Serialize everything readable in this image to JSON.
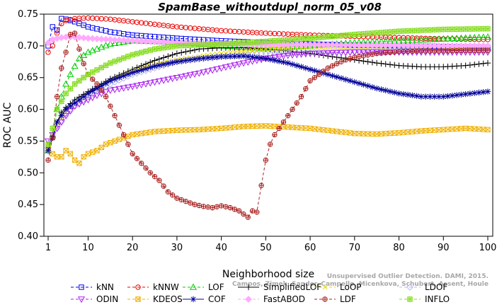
{
  "chart_data": {
    "type": "line",
    "title": "SpamBase_withoutdupl_norm_05_v08",
    "xlabel": "Neighborhood size",
    "ylabel": "ROC AUC",
    "xlim": [
      1,
      100
    ],
    "ylim": [
      0.4,
      0.75
    ],
    "xticks": [
      1,
      10,
      20,
      30,
      40,
      50,
      60,
      70,
      80,
      90,
      100
    ],
    "yticks": [
      0.4,
      0.45,
      0.5,
      0.55,
      0.6,
      0.65,
      0.7,
      0.75
    ],
    "grid": false,
    "legend_position": "bottom",
    "watermark": "Campos, Zimek, Sander, Campello, Micenkova, Schubert, Assent, Houle",
    "watermark_top": "Unsupervised Outlier Detection. DAMI, 2015.",
    "series": [
      {
        "name": "kNN",
        "color": "#0000ee",
        "marker": "square",
        "dash": "4,3",
        "points": [
          [
            1,
            0.7
          ],
          [
            2,
            0.73
          ],
          [
            3,
            0.725
          ],
          [
            4,
            0.743
          ],
          [
            5,
            0.742
          ],
          [
            7,
            0.738
          ],
          [
            10,
            0.73
          ],
          [
            15,
            0.722
          ],
          [
            20,
            0.717
          ],
          [
            30,
            0.712
          ],
          [
            40,
            0.708
          ],
          [
            50,
            0.705
          ],
          [
            60,
            0.703
          ],
          [
            70,
            0.701
          ],
          [
            80,
            0.7
          ],
          [
            90,
            0.699
          ],
          [
            100,
            0.698
          ]
        ]
      },
      {
        "name": "kNNW",
        "color": "#ee0000",
        "marker": "circle",
        "dash": "4,3",
        "points": [
          [
            1,
            0.69
          ],
          [
            2,
            0.7
          ],
          [
            3,
            0.72
          ],
          [
            4,
            0.735
          ],
          [
            5,
            0.74
          ],
          [
            7,
            0.743
          ],
          [
            10,
            0.744
          ],
          [
            15,
            0.742
          ],
          [
            20,
            0.738
          ],
          [
            30,
            0.73
          ],
          [
            40,
            0.724
          ],
          [
            50,
            0.72
          ],
          [
            60,
            0.717
          ],
          [
            70,
            0.715
          ],
          [
            80,
            0.713
          ],
          [
            90,
            0.711
          ],
          [
            100,
            0.71
          ]
        ]
      },
      {
        "name": "LOF",
        "color": "#00cc00",
        "marker": "triangle-up",
        "dash": "4,3",
        "points": [
          [
            1,
            0.535
          ],
          [
            2,
            0.56
          ],
          [
            3,
            0.6
          ],
          [
            4,
            0.62
          ],
          [
            5,
            0.64
          ],
          [
            6,
            0.655
          ],
          [
            7,
            0.668
          ],
          [
            8,
            0.68
          ],
          [
            10,
            0.69
          ],
          [
            15,
            0.703
          ],
          [
            20,
            0.708
          ],
          [
            30,
            0.706
          ],
          [
            40,
            0.7
          ],
          [
            50,
            0.696
          ],
          [
            60,
            0.7
          ],
          [
            70,
            0.705
          ],
          [
            80,
            0.708
          ],
          [
            90,
            0.711
          ],
          [
            100,
            0.714
          ]
        ]
      },
      {
        "name": "SimplifiedLOF",
        "color": "#000000",
        "marker": "plus",
        "dash": "",
        "points": [
          [
            1,
            0.54
          ],
          [
            2,
            0.555
          ],
          [
            3,
            0.58
          ],
          [
            4,
            0.595
          ],
          [
            5,
            0.603
          ],
          [
            7,
            0.615
          ],
          [
            10,
            0.628
          ],
          [
            15,
            0.648
          ],
          [
            20,
            0.663
          ],
          [
            25,
            0.677
          ],
          [
            30,
            0.688
          ],
          [
            35,
            0.695
          ],
          [
            40,
            0.697
          ],
          [
            45,
            0.697
          ],
          [
            50,
            0.695
          ],
          [
            55,
            0.692
          ],
          [
            60,
            0.688
          ],
          [
            65,
            0.683
          ],
          [
            70,
            0.678
          ],
          [
            75,
            0.673
          ],
          [
            80,
            0.669
          ],
          [
            85,
            0.667
          ],
          [
            90,
            0.667
          ],
          [
            95,
            0.669
          ],
          [
            100,
            0.673
          ]
        ]
      },
      {
        "name": "LoOP",
        "color": "#e8d800",
        "marker": "cross",
        "dash": "4,3",
        "points": [
          [
            1,
            0.54
          ],
          [
            2,
            0.555
          ],
          [
            3,
            0.575
          ],
          [
            5,
            0.595
          ],
          [
            7,
            0.61
          ],
          [
            10,
            0.625
          ],
          [
            15,
            0.645
          ],
          [
            20,
            0.66
          ],
          [
            25,
            0.67
          ],
          [
            30,
            0.678
          ],
          [
            40,
            0.688
          ],
          [
            50,
            0.695
          ],
          [
            60,
            0.698
          ],
          [
            70,
            0.698
          ],
          [
            80,
            0.697
          ],
          [
            90,
            0.696
          ],
          [
            100,
            0.696
          ]
        ]
      },
      {
        "name": "LDOF",
        "color": "#b8b8ee",
        "marker": "diamond",
        "dash": "4,3",
        "points": [
          [
            1,
            0.54
          ],
          [
            2,
            0.555
          ],
          [
            3,
            0.57
          ],
          [
            5,
            0.59
          ],
          [
            7,
            0.605
          ],
          [
            10,
            0.62
          ],
          [
            15,
            0.64
          ],
          [
            20,
            0.655
          ],
          [
            25,
            0.665
          ],
          [
            30,
            0.675
          ],
          [
            40,
            0.683
          ],
          [
            50,
            0.688
          ],
          [
            60,
            0.69
          ],
          [
            70,
            0.691
          ],
          [
            80,
            0.692
          ],
          [
            90,
            0.692
          ],
          [
            100,
            0.692
          ]
        ]
      },
      {
        "name": "ODIN",
        "color": "#aa22ee",
        "marker": "triangle-down",
        "dash": "4,3",
        "points": [
          [
            1,
            0.55
          ],
          [
            2,
            0.56
          ],
          [
            3,
            0.57
          ],
          [
            4,
            0.58
          ],
          [
            5,
            0.59
          ],
          [
            7,
            0.605
          ],
          [
            10,
            0.615
          ],
          [
            12,
            0.622
          ],
          [
            15,
            0.63
          ],
          [
            20,
            0.636
          ],
          [
            25,
            0.643
          ],
          [
            30,
            0.65
          ],
          [
            35,
            0.657
          ],
          [
            40,
            0.665
          ],
          [
            45,
            0.673
          ],
          [
            50,
            0.68
          ],
          [
            55,
            0.685
          ],
          [
            60,
            0.688
          ],
          [
            70,
            0.69
          ],
          [
            80,
            0.69
          ],
          [
            90,
            0.69
          ],
          [
            100,
            0.69
          ]
        ]
      },
      {
        "name": "KDEOS",
        "color": "#f0b000",
        "marker": "square-x",
        "dash": "4,3",
        "points": [
          [
            1,
            0.54
          ],
          [
            2,
            0.53
          ],
          [
            3,
            0.525
          ],
          [
            4,
            0.525
          ],
          [
            5,
            0.535
          ],
          [
            6,
            0.53
          ],
          [
            7,
            0.52
          ],
          [
            8,
            0.515
          ],
          [
            9,
            0.525
          ],
          [
            10,
            0.53
          ],
          [
            12,
            0.535
          ],
          [
            14,
            0.545
          ],
          [
            16,
            0.55
          ],
          [
            18,
            0.555
          ],
          [
            20,
            0.56
          ],
          [
            25,
            0.565
          ],
          [
            30,
            0.567
          ],
          [
            35,
            0.568
          ],
          [
            40,
            0.57
          ],
          [
            45,
            0.573
          ],
          [
            50,
            0.574
          ],
          [
            55,
            0.572
          ],
          [
            60,
            0.57
          ],
          [
            65,
            0.566
          ],
          [
            70,
            0.562
          ],
          [
            75,
            0.561
          ],
          [
            80,
            0.563
          ],
          [
            85,
            0.566
          ],
          [
            90,
            0.568
          ],
          [
            95,
            0.57
          ],
          [
            100,
            0.568
          ]
        ]
      },
      {
        "name": "COF",
        "color": "#000099",
        "marker": "asterisk",
        "dash": "",
        "points": [
          [
            1,
            0.535
          ],
          [
            2,
            0.555
          ],
          [
            3,
            0.58
          ],
          [
            5,
            0.6
          ],
          [
            7,
            0.61
          ],
          [
            10,
            0.625
          ],
          [
            15,
            0.645
          ],
          [
            20,
            0.658
          ],
          [
            25,
            0.668
          ],
          [
            30,
            0.675
          ],
          [
            35,
            0.68
          ],
          [
            40,
            0.683
          ],
          [
            45,
            0.684
          ],
          [
            50,
            0.68
          ],
          [
            55,
            0.673
          ],
          [
            60,
            0.663
          ],
          [
            65,
            0.653
          ],
          [
            70,
            0.643
          ],
          [
            75,
            0.633
          ],
          [
            80,
            0.625
          ],
          [
            85,
            0.62
          ],
          [
            90,
            0.62
          ],
          [
            95,
            0.624
          ],
          [
            100,
            0.628
          ]
        ]
      },
      {
        "name": "FastABOD",
        "color": "#ffaaff",
        "marker": "diamond-filled",
        "dash": "4,3",
        "points": [
          [
            1,
            0.705
          ],
          [
            2,
            0.71
          ],
          [
            3,
            0.712
          ],
          [
            4,
            0.713
          ],
          [
            5,
            0.714
          ],
          [
            7,
            0.714
          ],
          [
            10,
            0.712
          ],
          [
            15,
            0.71
          ],
          [
            20,
            0.708
          ],
          [
            30,
            0.705
          ],
          [
            40,
            0.703
          ],
          [
            50,
            0.702
          ],
          [
            60,
            0.702
          ],
          [
            70,
            0.701
          ],
          [
            80,
            0.701
          ],
          [
            90,
            0.7
          ],
          [
            100,
            0.7
          ]
        ]
      },
      {
        "name": "LDF",
        "color": "#aa2222",
        "marker": "circle-plus",
        "dash": "4,3",
        "points": [
          [
            1,
            0.52
          ],
          [
            2,
            0.555
          ],
          [
            3,
            0.62
          ],
          [
            4,
            0.665
          ],
          [
            5,
            0.69
          ],
          [
            6,
            0.718
          ],
          [
            7,
            0.72
          ],
          [
            8,
            0.695
          ],
          [
            9,
            0.672
          ],
          [
            10,
            0.655
          ],
          [
            12,
            0.64
          ],
          [
            14,
            0.62
          ],
          [
            16,
            0.59
          ],
          [
            18,
            0.56
          ],
          [
            20,
            0.53
          ],
          [
            22,
            0.515
          ],
          [
            24,
            0.5
          ],
          [
            26,
            0.488
          ],
          [
            28,
            0.47
          ],
          [
            30,
            0.46
          ],
          [
            32,
            0.455
          ],
          [
            34,
            0.45
          ],
          [
            36,
            0.447
          ],
          [
            38,
            0.445
          ],
          [
            40,
            0.448
          ],
          [
            42,
            0.445
          ],
          [
            44,
            0.44
          ],
          [
            46,
            0.43
          ],
          [
            47,
            0.44
          ],
          [
            48,
            0.438
          ],
          [
            49,
            0.48
          ],
          [
            50,
            0.52
          ],
          [
            51,
            0.545
          ],
          [
            52,
            0.56
          ],
          [
            54,
            0.58
          ],
          [
            56,
            0.6
          ],
          [
            58,
            0.62
          ],
          [
            60,
            0.645
          ],
          [
            62,
            0.655
          ],
          [
            64,
            0.665
          ],
          [
            66,
            0.672
          ],
          [
            68,
            0.678
          ],
          [
            70,
            0.682
          ],
          [
            75,
            0.688
          ],
          [
            80,
            0.691
          ],
          [
            85,
            0.692
          ],
          [
            90,
            0.692
          ],
          [
            95,
            0.693
          ],
          [
            100,
            0.693
          ]
        ]
      },
      {
        "name": "INFLO",
        "color": "#88dd22",
        "marker": "star",
        "dash": "4,3",
        "points": [
          [
            1,
            0.545
          ],
          [
            2,
            0.57
          ],
          [
            3,
            0.6
          ],
          [
            5,
            0.625
          ],
          [
            7,
            0.64
          ],
          [
            10,
            0.655
          ],
          [
            15,
            0.673
          ],
          [
            20,
            0.686
          ],
          [
            25,
            0.695
          ],
          [
            30,
            0.7
          ],
          [
            40,
            0.703
          ],
          [
            50,
            0.707
          ],
          [
            60,
            0.712
          ],
          [
            70,
            0.718
          ],
          [
            80,
            0.723
          ],
          [
            90,
            0.726
          ],
          [
            100,
            0.727
          ]
        ]
      }
    ]
  }
}
